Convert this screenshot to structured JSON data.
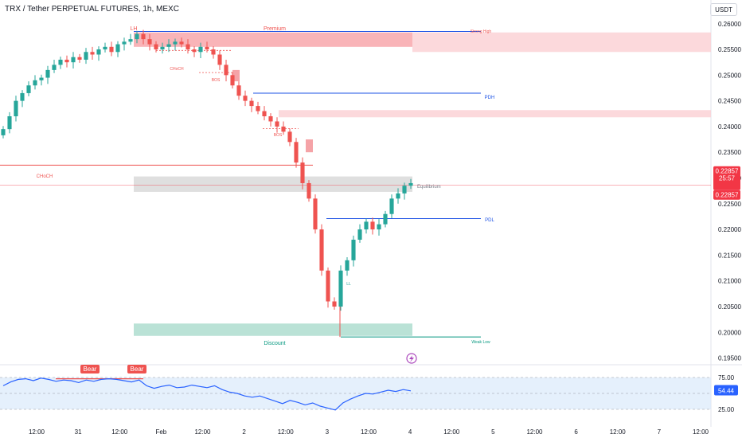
{
  "header": {
    "title": "TRX / Tether PERPETUAL FUTURES, 1h, MEXC",
    "currency_button": "USDT"
  },
  "price_tags": {
    "last": "0.22857",
    "countdown": "25:57",
    "second": "0.22857"
  },
  "annotations": {
    "lh": "LH",
    "premium": "Premium",
    "strong_high": "Strong High",
    "choch_small": "CHoCH",
    "bos_1": "BOS",
    "pdh": "PDH",
    "bos_2": "BOS",
    "choch_big": "CHoCH",
    "equilibrium": "Equilibrium",
    "pdl": "PDL",
    "ll": "LL",
    "discount": "Discount",
    "weak_low": "Weak Low"
  },
  "rsi": {
    "value_label": "54.44",
    "levels": [
      "75.00",
      "25.00"
    ],
    "bear_labels": [
      "Bear",
      "Bear"
    ]
  },
  "colors": {
    "up": "#26a69a",
    "down": "#ef5350",
    "blue": "#1e53e5",
    "rsi_line": "#2962ff",
    "price_tag": "#f23645"
  },
  "chart_data": {
    "type": "candlestick",
    "symbol": "TRX/USDT perpetual",
    "interval": "1h",
    "y_axis": [
      "0.26000",
      "0.25500",
      "0.25000",
      "0.24500",
      "0.24000",
      "0.23500",
      "0.23000",
      "0.22500",
      "0.22000",
      "0.21500",
      "0.21000",
      "0.20500",
      "0.20000",
      "0.19500"
    ],
    "ylim": [
      0.194,
      0.2612
    ],
    "x_axis": [
      "12:00",
      "31",
      "12:00",
      "Feb",
      "12:00",
      "2",
      "12:00",
      "3",
      "12:00",
      "4",
      "12:00",
      "5",
      "12:00",
      "6",
      "12:00",
      "7",
      "12:00"
    ],
    "levels": {
      "premium_line": 0.2585,
      "pdh": 0.2465,
      "equilibrium": 0.2288,
      "pdl": 0.2221,
      "weak_low": 0.1991,
      "choch_line": 0.2325
    },
    "close_path": [
      0.2395,
      0.242,
      0.245,
      0.2465,
      0.248,
      0.249,
      0.2495,
      0.251,
      0.252,
      0.253,
      0.2525,
      0.2535,
      0.253,
      0.2545,
      0.254,
      0.255,
      0.2555,
      0.2545,
      0.256,
      0.2565,
      0.257,
      0.258,
      0.257,
      0.256,
      0.255,
      0.2555,
      0.256,
      0.2565,
      0.256,
      0.255,
      0.2545,
      0.2555,
      0.255,
      0.254,
      0.252,
      0.25,
      0.248,
      0.246,
      0.245,
      0.244,
      0.243,
      0.242,
      0.241,
      0.24,
      0.239,
      0.237,
      0.233,
      0.229,
      0.226,
      0.22,
      0.212,
      0.206,
      0.205,
      0.212,
      0.214,
      0.218,
      0.22,
      0.2215,
      0.22,
      0.221,
      0.223,
      0.226,
      0.227,
      0.2285,
      0.229
    ],
    "rsi_ylim": [
      10,
      90
    ],
    "rsi_levels": [
      75,
      25
    ],
    "rsi_values": [
      62,
      68,
      72,
      73,
      70,
      74,
      72,
      69,
      71,
      70,
      67,
      71,
      69,
      72,
      73,
      72,
      70,
      68,
      71,
      62,
      58,
      61,
      63,
      59,
      60,
      63,
      61,
      59,
      62,
      56,
      52,
      50,
      46,
      44,
      46,
      42,
      38,
      34,
      39,
      36,
      32,
      35,
      30,
      27,
      24,
      35,
      41,
      46,
      50,
      49,
      52,
      55,
      53,
      56,
      54
    ]
  }
}
